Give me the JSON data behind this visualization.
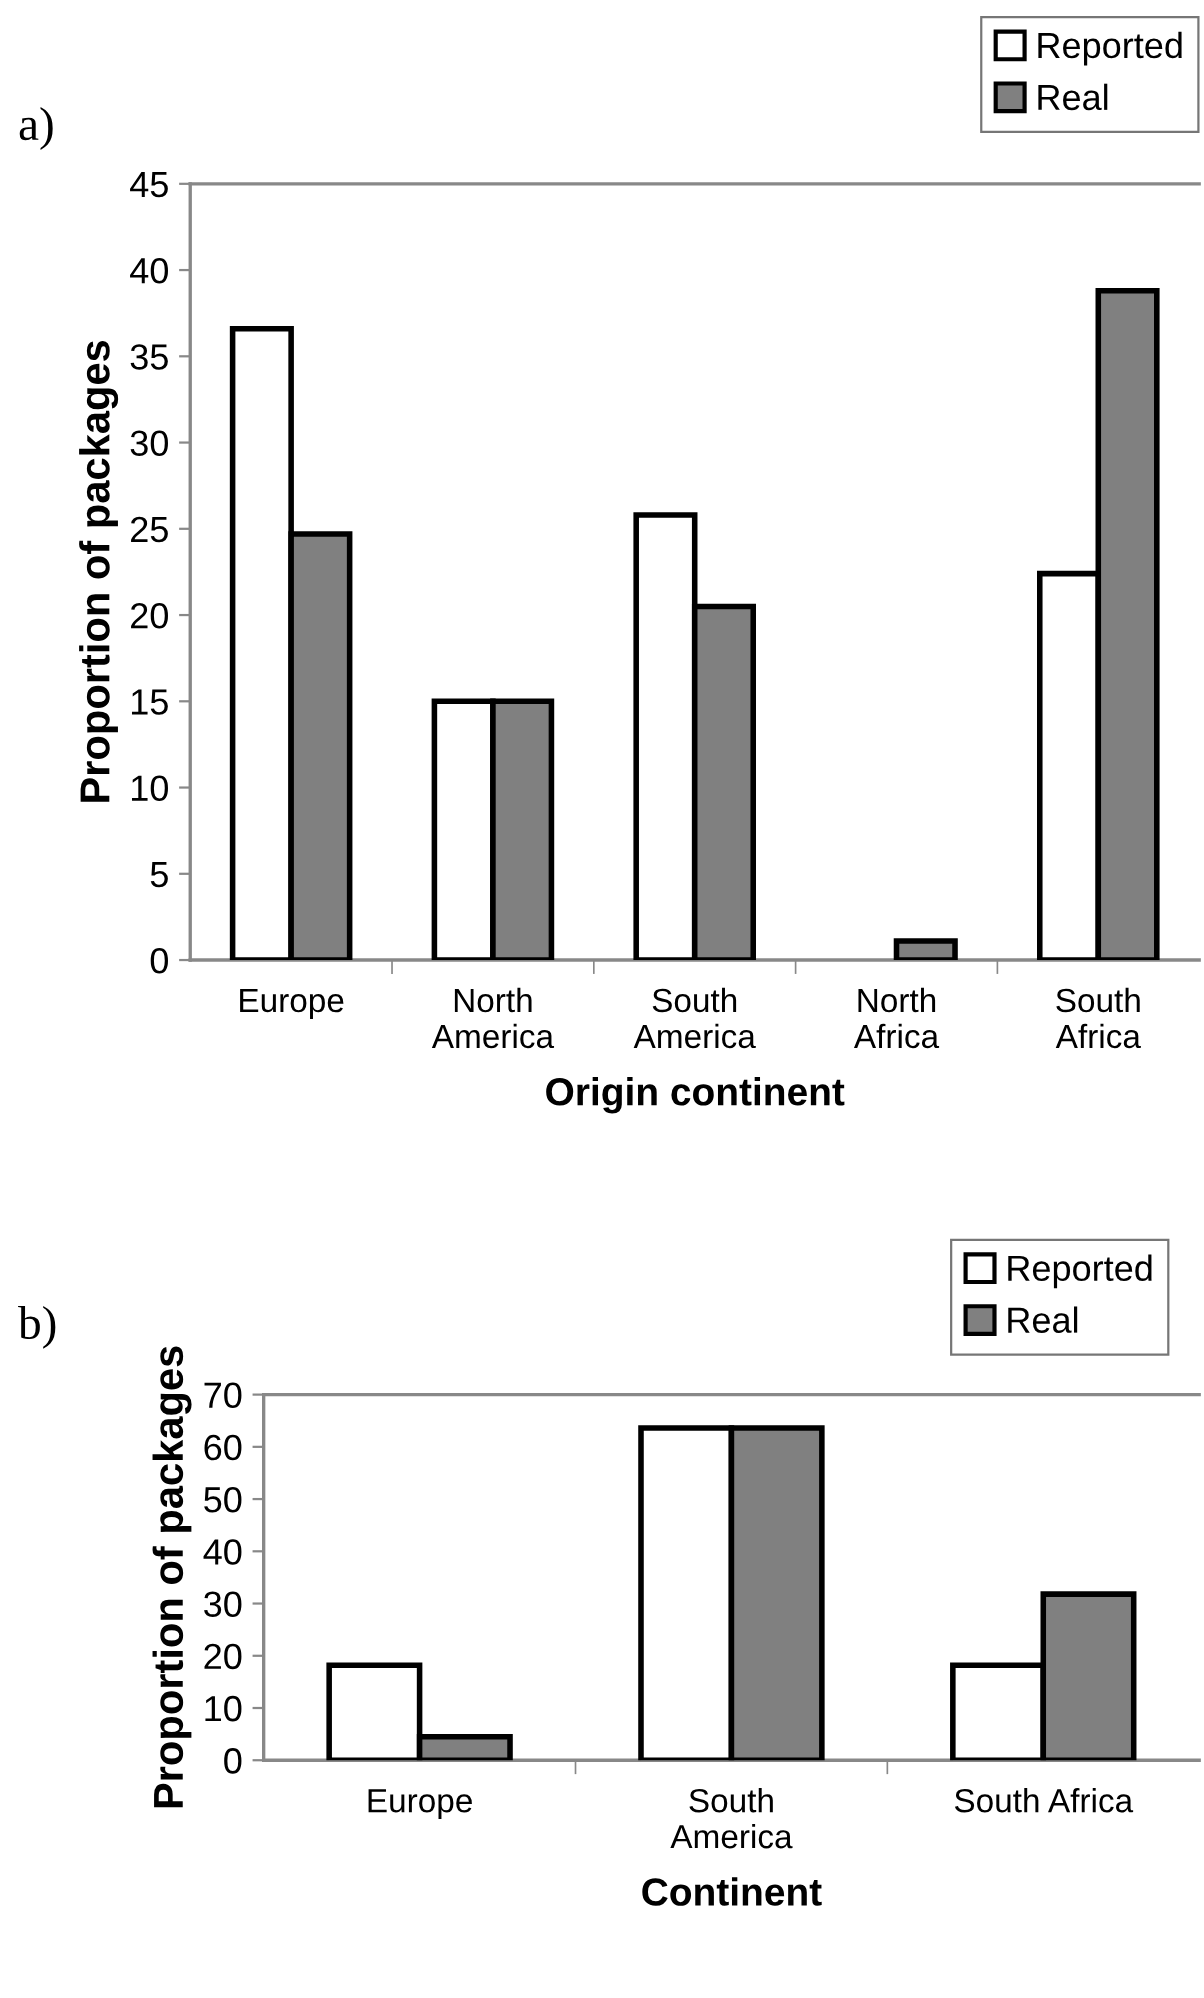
{
  "chart_data": [
    {
      "type": "bar",
      "title": "a)",
      "xlabel": "Origin continent",
      "ylabel": "Proportion of packages",
      "categories": [
        "Europe",
        "North\nAmerica",
        "South\nAmerica",
        "North\nAfrica",
        "South\nAfrica"
      ],
      "series": [
        {
          "name": "Reported",
          "color": "#ffffff",
          "values": [
            36.6,
            15,
            25.8,
            null,
            22.4
          ]
        },
        {
          "name": "Real",
          "color": "#808080",
          "values": [
            24.7,
            15,
            20.5,
            1.1,
            38.8
          ]
        }
      ],
      "ylim": [
        0,
        45
      ],
      "yticks": [
        0,
        5,
        10,
        15,
        20,
        25,
        30,
        35,
        40,
        45
      ],
      "grid": false,
      "legend": "top right"
    },
    {
      "type": "bar",
      "title": "b)",
      "xlabel": "Continent",
      "ylabel": "Proportion of packages",
      "categories": [
        "Europe",
        "South\nAmerica",
        "South Africa"
      ],
      "series": [
        {
          "name": "Reported",
          "color": "#ffffff",
          "values": [
            18.2,
            63.6,
            18.2
          ]
        },
        {
          "name": "Real",
          "color": "#808080",
          "values": [
            4.5,
            63.6,
            31.8
          ]
        }
      ],
      "ylim": [
        0,
        70
      ],
      "yticks": [
        0,
        10,
        20,
        30,
        40,
        50,
        60,
        70
      ],
      "grid": false,
      "legend": "top right"
    }
  ]
}
